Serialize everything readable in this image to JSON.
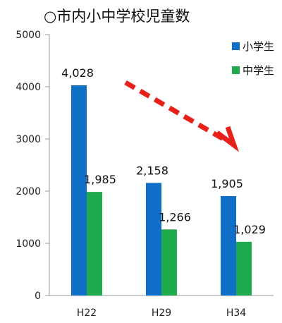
{
  "chart_data": {
    "type": "bar",
    "title": "○市内小中学校児童数",
    "categories": [
      "H22",
      "H29",
      "H34"
    ],
    "series": [
      {
        "name": "小学生",
        "values": [
          4028,
          2158,
          1905
        ],
        "labels": [
          "4,028",
          "2,158",
          "1,905"
        ],
        "color": "#0f6fc6"
      },
      {
        "name": "中学生",
        "values": [
          1985,
          1266,
          1029
        ],
        "labels": [
          "1,985",
          "1,266",
          "1,029"
        ],
        "color": "#1faa4e"
      }
    ],
    "ylim": [
      0,
      5000
    ],
    "yticks": [
      0,
      1000,
      2000,
      3000,
      4000,
      5000
    ],
    "xlabel": "",
    "ylabel": "",
    "legend_position": "top-right",
    "grid": false,
    "annotation": {
      "type": "dashed-arrow",
      "color": "#e8201a",
      "direction": "down-right"
    }
  }
}
